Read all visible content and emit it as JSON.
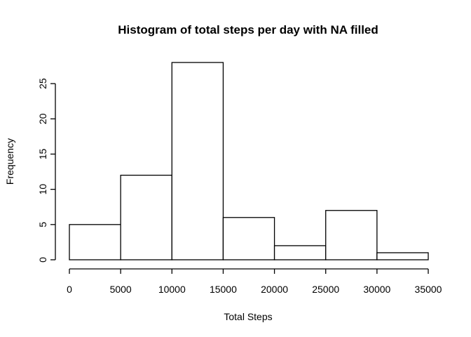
{
  "chart_data": {
    "type": "bar",
    "title": "Histogram of total steps per day with NA filled",
    "xlabel": "Total Steps",
    "ylabel": "Frequency",
    "bins": [
      {
        "start": 0,
        "end": 5000,
        "count": 5
      },
      {
        "start": 5000,
        "end": 10000,
        "count": 12
      },
      {
        "start": 10000,
        "end": 15000,
        "count": 28
      },
      {
        "start": 15000,
        "end": 20000,
        "count": 6
      },
      {
        "start": 20000,
        "end": 25000,
        "count": 2
      },
      {
        "start": 25000,
        "end": 30000,
        "count": 7
      },
      {
        "start": 30000,
        "end": 35000,
        "count": 1
      }
    ],
    "xlim": [
      0,
      35000
    ],
    "ylim": [
      0,
      28
    ],
    "x_ticks": [
      0,
      5000,
      10000,
      15000,
      20000,
      25000,
      30000,
      35000
    ],
    "y_ticks": [
      0,
      5,
      10,
      15,
      20,
      25
    ],
    "grid": false,
    "bar_fill": "#ffffff",
    "bar_stroke": "#000000"
  }
}
